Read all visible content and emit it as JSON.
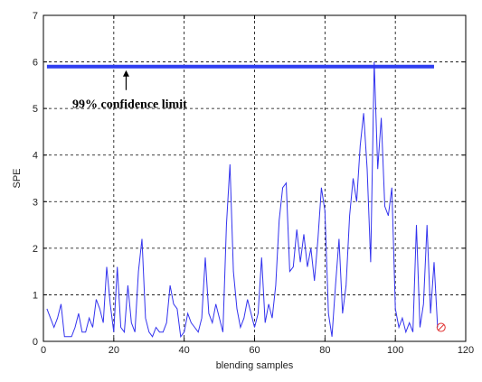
{
  "chart_data": {
    "type": "line",
    "title": "",
    "xlabel": "blending samples",
    "ylabel": "SPE",
    "xlim": [
      0,
      120
    ],
    "ylim": [
      0,
      7
    ],
    "xticks": [
      0,
      20,
      40,
      60,
      80,
      100,
      120
    ],
    "yticks": [
      0,
      1,
      2,
      3,
      4,
      5,
      6,
      7
    ],
    "grid": true,
    "line_color": "#3333ee",
    "limit_color": "#2e3ef0",
    "marker_color": "#e03030",
    "confidence_limit": {
      "value": 5.9,
      "x_range": [
        1,
        111
      ],
      "label": "99% confidence limit",
      "arrow_x": 23.5
    },
    "marker": {
      "x": 113,
      "y": 0.3
    },
    "series": [
      {
        "x": [
          1,
          2,
          3,
          4,
          5,
          6,
          7,
          8,
          9,
          10,
          11,
          12,
          13,
          14,
          15,
          16,
          17,
          18,
          19,
          20,
          21,
          22,
          23,
          24,
          25,
          26,
          27,
          28,
          29,
          30,
          31,
          32,
          33,
          34,
          35,
          36,
          37,
          38,
          39,
          40,
          41,
          42,
          43,
          44,
          45,
          46,
          47,
          48,
          49,
          50,
          51,
          52,
          53,
          54,
          55,
          56,
          57,
          58,
          59,
          60,
          61,
          62,
          63,
          64,
          65,
          66,
          67,
          68,
          69,
          70,
          71,
          72,
          73,
          74,
          75,
          76,
          77,
          78,
          79,
          80,
          81,
          82,
          83,
          84,
          85,
          86,
          87,
          88,
          89,
          90,
          91,
          92,
          93,
          94,
          95,
          96,
          97,
          98,
          99,
          100,
          101,
          102,
          103,
          104,
          105,
          106,
          107,
          108,
          109,
          110,
          111,
          112
        ],
        "y": [
          0.7,
          0.5,
          0.3,
          0.5,
          0.8,
          0.1,
          0.1,
          0.1,
          0.3,
          0.6,
          0.2,
          0.2,
          0.5,
          0.3,
          0.9,
          0.7,
          0.4,
          1.6,
          0.8,
          0.2,
          1.6,
          0.3,
          0.2,
          1.2,
          0.4,
          0.2,
          1.5,
          2.2,
          0.5,
          0.2,
          0.1,
          0.3,
          0.2,
          0.2,
          0.4,
          1.2,
          0.8,
          0.7,
          0.1,
          0.2,
          0.6,
          0.4,
          0.3,
          0.2,
          0.5,
          1.8,
          0.6,
          0.4,
          0.8,
          0.5,
          0.2,
          2.5,
          3.8,
          1.5,
          0.7,
          0.3,
          0.5,
          0.9,
          0.6,
          0.3,
          0.6,
          1.8,
          0.4,
          0.8,
          0.5,
          1.2,
          2.6,
          3.3,
          3.4,
          1.5,
          1.6,
          2.4,
          1.7,
          2.3,
          1.6,
          2.0,
          1.3,
          2.2,
          3.3,
          2.8,
          0.6,
          0.1,
          1.2,
          2.2,
          0.6,
          1.2,
          2.7,
          3.5,
          3.0,
          4.2,
          4.9,
          3.7,
          1.7,
          6.0,
          3.7,
          4.8,
          2.9,
          2.7,
          3.3,
          0.7,
          0.3,
          0.5,
          0.2,
          0.4,
          0.2,
          2.5,
          0.3,
          0.8,
          2.5,
          0.6,
          1.7,
          0.3
        ]
      }
    ]
  }
}
